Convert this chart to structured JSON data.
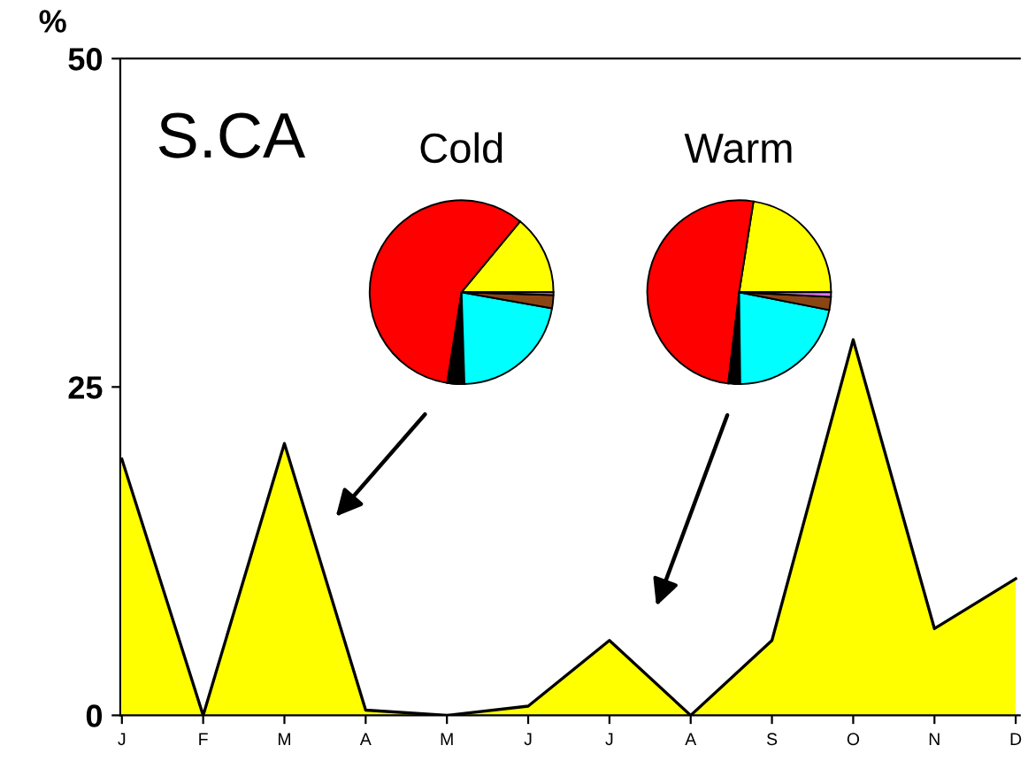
{
  "chart_data": [
    {
      "type": "area",
      "ylabel": "%",
      "annotations": [
        "S.CA"
      ],
      "categories": [
        "J",
        "F",
        "M",
        "A",
        "M",
        "J",
        "J",
        "A",
        "S",
        "O",
        "N",
        "D"
      ],
      "series": [
        {
          "color": "#ffff00",
          "values": [
            19.5,
            0,
            20.7,
            0.4,
            0,
            0.7,
            5.7,
            0,
            5.7,
            28.6,
            6.6,
            10.4
          ]
        }
      ],
      "ylim": [
        0,
        50
      ],
      "yticks": [
        0,
        25,
        50
      ],
      "grid": false,
      "legend": false
    },
    {
      "type": "pie",
      "title": "Cold",
      "categories": [
        null,
        null,
        null,
        null,
        null,
        null
      ],
      "values": [
        14,
        58.5,
        3,
        21.7,
        2.3,
        0.5
      ],
      "colors": [
        "#ffff00",
        "#ff0000",
        "#000000",
        "#00ffff",
        "#8b4513",
        "#dd77ee"
      ]
    },
    {
      "type": "pie",
      "title": "Warm",
      "categories": [
        null,
        null,
        null,
        null,
        null,
        null
      ],
      "values": [
        22.5,
        50.6,
        2.1,
        21.7,
        2.3,
        0.8
      ],
      "colors": [
        "#ffff00",
        "#ff0000",
        "#000000",
        "#00ffff",
        "#8b4513",
        "#dd77ee"
      ]
    }
  ]
}
